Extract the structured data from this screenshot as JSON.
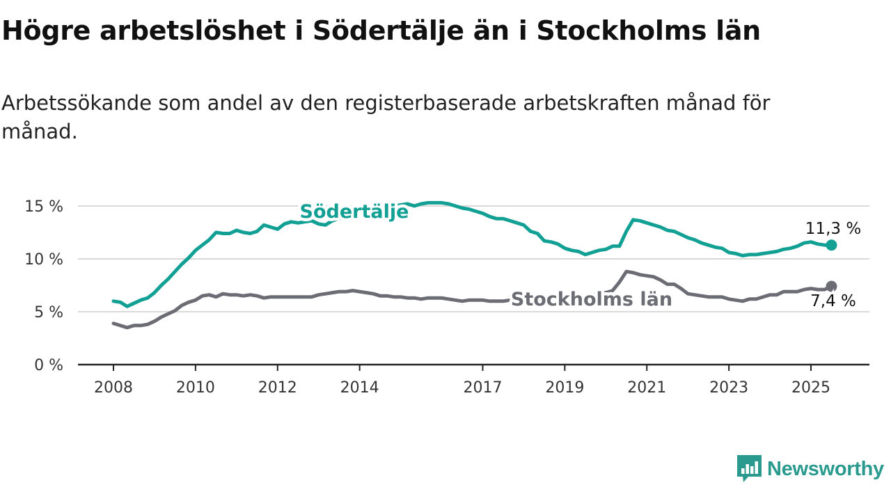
{
  "title": "Högre arbetslöshet i Södertälje än i Stockholms län",
  "subtitle": "Arbetssökande som andel av den registerbaserade arbetskraften månad för månad.",
  "brand": {
    "name": "Newsworthy",
    "color": "#2b9a8e",
    "icon": "newsworthy-logo-icon"
  },
  "chart_data": {
    "type": "line",
    "xlabel": "",
    "ylabel": "",
    "ylim": [
      0,
      15
    ],
    "xlim": [
      "2008-01",
      "2025-12"
    ],
    "y_ticks": [
      {
        "value": 0,
        "label": "0 %"
      },
      {
        "value": 5,
        "label": "5 %"
      },
      {
        "value": 10,
        "label": "10 %"
      },
      {
        "value": 15,
        "label": "15 %"
      }
    ],
    "x_ticks": [
      {
        "value": "2008-01",
        "label": "2008"
      },
      {
        "value": "2010-01",
        "label": "2010"
      },
      {
        "value": "2012-01",
        "label": "2012"
      },
      {
        "value": "2014-01",
        "label": "2014"
      },
      {
        "value": "2017-01",
        "label": "2017"
      },
      {
        "value": "2019-01",
        "label": "2019"
      },
      {
        "value": "2021-01",
        "label": "2021"
      },
      {
        "value": "2023-01",
        "label": "2023"
      },
      {
        "value": "2025-01",
        "label": "2025"
      }
    ],
    "grid": true,
    "series": [
      {
        "name": "Södertälje",
        "color": "#12a095",
        "end_label": "11,3 %",
        "points": [
          [
            "2008-01",
            6.0
          ],
          [
            "2008-03",
            5.9
          ],
          [
            "2008-05",
            5.5
          ],
          [
            "2008-07",
            5.8
          ],
          [
            "2008-09",
            6.1
          ],
          [
            "2008-11",
            6.3
          ],
          [
            "2009-01",
            6.8
          ],
          [
            "2009-03",
            7.5
          ],
          [
            "2009-05",
            8.1
          ],
          [
            "2009-07",
            8.8
          ],
          [
            "2009-09",
            9.5
          ],
          [
            "2009-11",
            10.1
          ],
          [
            "2010-01",
            10.8
          ],
          [
            "2010-03",
            11.3
          ],
          [
            "2010-05",
            11.8
          ],
          [
            "2010-07",
            12.5
          ],
          [
            "2010-09",
            12.4
          ],
          [
            "2010-11",
            12.4
          ],
          [
            "2011-01",
            12.7
          ],
          [
            "2011-03",
            12.5
          ],
          [
            "2011-05",
            12.4
          ],
          [
            "2011-07",
            12.6
          ],
          [
            "2011-09",
            13.2
          ],
          [
            "2011-11",
            13.0
          ],
          [
            "2012-01",
            12.8
          ],
          [
            "2012-03",
            13.3
          ],
          [
            "2012-05",
            13.5
          ],
          [
            "2012-07",
            13.4
          ],
          [
            "2012-09",
            13.5
          ],
          [
            "2012-11",
            13.6
          ],
          [
            "2013-01",
            13.3
          ],
          [
            "2013-03",
            13.2
          ],
          [
            "2013-05",
            13.6
          ],
          [
            "2013-07",
            13.8
          ],
          [
            "2013-09",
            14.0
          ],
          [
            "2013-11",
            14.2
          ],
          [
            "2014-01",
            14.4
          ],
          [
            "2014-03",
            14.5
          ],
          [
            "2014-05",
            14.6
          ],
          [
            "2014-07",
            14.8
          ],
          [
            "2014-09",
            14.9
          ],
          [
            "2014-11",
            15.0
          ],
          [
            "2015-01",
            15.1
          ],
          [
            "2015-03",
            15.2
          ],
          [
            "2015-05",
            15.0
          ],
          [
            "2015-07",
            15.2
          ],
          [
            "2015-09",
            15.3
          ],
          [
            "2015-11",
            15.3
          ],
          [
            "2016-01",
            15.3
          ],
          [
            "2016-03",
            15.2
          ],
          [
            "2016-05",
            15.0
          ],
          [
            "2016-07",
            14.8
          ],
          [
            "2016-09",
            14.7
          ],
          [
            "2016-11",
            14.5
          ],
          [
            "2017-01",
            14.3
          ],
          [
            "2017-03",
            14.0
          ],
          [
            "2017-05",
            13.8
          ],
          [
            "2017-07",
            13.8
          ],
          [
            "2017-09",
            13.6
          ],
          [
            "2017-11",
            13.4
          ],
          [
            "2018-01",
            13.2
          ],
          [
            "2018-03",
            12.6
          ],
          [
            "2018-05",
            12.4
          ],
          [
            "2018-07",
            11.7
          ],
          [
            "2018-09",
            11.6
          ],
          [
            "2018-11",
            11.4
          ],
          [
            "2019-01",
            11.0
          ],
          [
            "2019-03",
            10.8
          ],
          [
            "2019-05",
            10.7
          ],
          [
            "2019-07",
            10.4
          ],
          [
            "2019-09",
            10.6
          ],
          [
            "2019-11",
            10.8
          ],
          [
            "2020-01",
            10.9
          ],
          [
            "2020-03",
            11.2
          ],
          [
            "2020-05",
            11.2
          ],
          [
            "2020-07",
            12.6
          ],
          [
            "2020-09",
            13.7
          ],
          [
            "2020-11",
            13.6
          ],
          [
            "2021-01",
            13.4
          ],
          [
            "2021-03",
            13.2
          ],
          [
            "2021-05",
            13.0
          ],
          [
            "2021-07",
            12.7
          ],
          [
            "2021-09",
            12.6
          ],
          [
            "2021-11",
            12.3
          ],
          [
            "2022-01",
            12.0
          ],
          [
            "2022-03",
            11.8
          ],
          [
            "2022-05",
            11.5
          ],
          [
            "2022-07",
            11.3
          ],
          [
            "2022-09",
            11.1
          ],
          [
            "2022-11",
            11.0
          ],
          [
            "2023-01",
            10.6
          ],
          [
            "2023-03",
            10.5
          ],
          [
            "2023-05",
            10.3
          ],
          [
            "2023-07",
            10.4
          ],
          [
            "2023-09",
            10.4
          ],
          [
            "2023-11",
            10.5
          ],
          [
            "2024-01",
            10.6
          ],
          [
            "2024-03",
            10.7
          ],
          [
            "2024-05",
            10.9
          ],
          [
            "2024-07",
            11.0
          ],
          [
            "2024-09",
            11.2
          ],
          [
            "2024-11",
            11.5
          ],
          [
            "2025-01",
            11.6
          ],
          [
            "2025-03",
            11.4
          ],
          [
            "2025-05",
            11.3
          ],
          [
            "2025-07",
            11.3
          ]
        ]
      },
      {
        "name": "Stockholms län",
        "color": "#6c6c74",
        "end_label": "7,4 %",
        "points": [
          [
            "2008-01",
            3.9
          ],
          [
            "2008-03",
            3.7
          ],
          [
            "2008-05",
            3.5
          ],
          [
            "2008-07",
            3.7
          ],
          [
            "2008-09",
            3.7
          ],
          [
            "2008-11",
            3.8
          ],
          [
            "2009-01",
            4.1
          ],
          [
            "2009-03",
            4.5
          ],
          [
            "2009-05",
            4.8
          ],
          [
            "2009-07",
            5.1
          ],
          [
            "2009-09",
            5.6
          ],
          [
            "2009-11",
            5.9
          ],
          [
            "2010-01",
            6.1
          ],
          [
            "2010-03",
            6.5
          ],
          [
            "2010-05",
            6.6
          ],
          [
            "2010-07",
            6.4
          ],
          [
            "2010-09",
            6.7
          ],
          [
            "2010-11",
            6.6
          ],
          [
            "2011-01",
            6.6
          ],
          [
            "2011-03",
            6.5
          ],
          [
            "2011-05",
            6.6
          ],
          [
            "2011-07",
            6.5
          ],
          [
            "2011-09",
            6.3
          ],
          [
            "2011-11",
            6.4
          ],
          [
            "2012-01",
            6.4
          ],
          [
            "2012-03",
            6.4
          ],
          [
            "2012-05",
            6.4
          ],
          [
            "2012-07",
            6.4
          ],
          [
            "2012-09",
            6.4
          ],
          [
            "2012-11",
            6.4
          ],
          [
            "2013-01",
            6.6
          ],
          [
            "2013-03",
            6.7
          ],
          [
            "2013-05",
            6.8
          ],
          [
            "2013-07",
            6.9
          ],
          [
            "2013-09",
            6.9
          ],
          [
            "2013-11",
            7.0
          ],
          [
            "2014-01",
            6.9
          ],
          [
            "2014-03",
            6.8
          ],
          [
            "2014-05",
            6.7
          ],
          [
            "2014-07",
            6.5
          ],
          [
            "2014-09",
            6.5
          ],
          [
            "2014-11",
            6.4
          ],
          [
            "2015-01",
            6.4
          ],
          [
            "2015-03",
            6.3
          ],
          [
            "2015-05",
            6.3
          ],
          [
            "2015-07",
            6.2
          ],
          [
            "2015-09",
            6.3
          ],
          [
            "2015-11",
            6.3
          ],
          [
            "2016-01",
            6.3
          ],
          [
            "2016-03",
            6.2
          ],
          [
            "2016-05",
            6.1
          ],
          [
            "2016-07",
            6.0
          ],
          [
            "2016-09",
            6.1
          ],
          [
            "2016-11",
            6.1
          ],
          [
            "2017-01",
            6.1
          ],
          [
            "2017-03",
            6.0
          ],
          [
            "2017-05",
            6.0
          ],
          [
            "2017-07",
            6.0
          ],
          [
            "2017-09",
            6.1
          ],
          [
            "2017-11",
            6.1
          ],
          [
            "2018-01",
            6.1
          ],
          [
            "2018-03",
            6.1
          ],
          [
            "2018-05",
            6.1
          ],
          [
            "2018-07",
            6.2
          ],
          [
            "2018-09",
            6.2
          ],
          [
            "2018-11",
            6.3
          ],
          [
            "2019-01",
            6.3
          ],
          [
            "2019-03",
            6.4
          ],
          [
            "2019-05",
            6.4
          ],
          [
            "2019-07",
            6.5
          ],
          [
            "2019-09",
            6.6
          ],
          [
            "2019-11",
            6.7
          ],
          [
            "2020-01",
            6.8
          ],
          [
            "2020-03",
            7.0
          ],
          [
            "2020-05",
            7.8
          ],
          [
            "2020-07",
            8.8
          ],
          [
            "2020-09",
            8.7
          ],
          [
            "2020-11",
            8.5
          ],
          [
            "2021-01",
            8.4
          ],
          [
            "2021-03",
            8.3
          ],
          [
            "2021-05",
            8.0
          ],
          [
            "2021-07",
            7.6
          ],
          [
            "2021-09",
            7.6
          ],
          [
            "2021-11",
            7.2
          ],
          [
            "2022-01",
            6.7
          ],
          [
            "2022-03",
            6.6
          ],
          [
            "2022-05",
            6.5
          ],
          [
            "2022-07",
            6.4
          ],
          [
            "2022-09",
            6.4
          ],
          [
            "2022-11",
            6.4
          ],
          [
            "2023-01",
            6.2
          ],
          [
            "2023-03",
            6.1
          ],
          [
            "2023-05",
            6.0
          ],
          [
            "2023-07",
            6.2
          ],
          [
            "2023-09",
            6.2
          ],
          [
            "2023-11",
            6.4
          ],
          [
            "2024-01",
            6.6
          ],
          [
            "2024-03",
            6.6
          ],
          [
            "2024-05",
            6.9
          ],
          [
            "2024-07",
            6.9
          ],
          [
            "2024-09",
            6.9
          ],
          [
            "2024-11",
            7.1
          ],
          [
            "2025-01",
            7.2
          ],
          [
            "2025-03",
            7.1
          ],
          [
            "2025-05",
            7.1
          ],
          [
            "2025-07",
            7.4
          ]
        ]
      }
    ]
  }
}
